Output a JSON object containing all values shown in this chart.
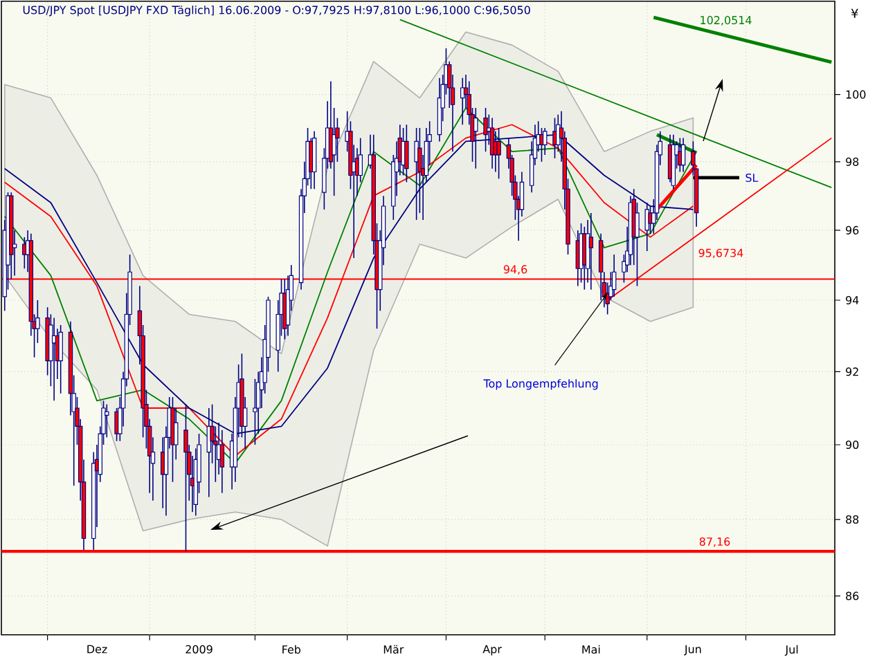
{
  "chart_data": {
    "type": "candlestick",
    "title": "USD/JPY Spot [USDJPY FXD  Täglich] 16.06.2009 - O:97,7925 H:97,8100 L:96,1000 C:96,5050",
    "ylabel": "¥",
    "x": [
      "2008-11-18",
      "2008-11-19",
      "2008-11-20",
      "2008-11-21",
      "2008-11-24",
      "2008-11-25",
      "2008-11-26",
      "2008-11-27",
      "2008-11-28",
      "2008-12-01",
      "2008-12-02",
      "2008-12-03",
      "2008-12-04",
      "2008-12-05",
      "2008-12-08",
      "2008-12-09",
      "2008-12-10",
      "2008-12-11",
      "2008-12-12",
      "2008-12-15",
      "2008-12-16",
      "2008-12-17",
      "2008-12-18",
      "2008-12-19",
      "2008-12-22",
      "2008-12-23",
      "2008-12-24",
      "2008-12-25",
      "2008-12-26",
      "2008-12-29",
      "2008-12-30",
      "2008-12-31",
      "2009-01-01",
      "2009-01-02",
      "2009-01-05",
      "2009-01-06",
      "2009-01-07",
      "2009-01-08",
      "2009-01-09",
      "2009-01-12",
      "2009-01-13",
      "2009-01-14",
      "2009-01-15",
      "2009-01-16",
      "2009-01-19",
      "2009-01-20",
      "2009-01-21",
      "2009-01-22",
      "2009-01-23",
      "2009-01-26",
      "2009-01-27",
      "2009-01-28",
      "2009-01-29",
      "2009-01-30",
      "2009-02-02",
      "2009-02-03",
      "2009-02-04",
      "2009-02-05",
      "2009-02-06",
      "2009-02-09",
      "2009-02-10",
      "2009-02-11",
      "2009-02-12",
      "2009-02-13",
      "2009-02-16",
      "2009-02-17",
      "2009-02-18",
      "2009-02-19",
      "2009-02-20",
      "2009-02-23",
      "2009-02-24",
      "2009-02-25",
      "2009-02-26",
      "2009-02-27",
      "2009-03-02",
      "2009-03-03",
      "2009-03-04",
      "2009-03-05",
      "2009-03-06",
      "2009-03-09",
      "2009-03-10",
      "2009-03-11",
      "2009-03-12",
      "2009-03-13",
      "2009-03-16",
      "2009-03-17",
      "2009-03-18",
      "2009-03-19",
      "2009-03-20",
      "2009-03-23",
      "2009-03-24",
      "2009-03-25",
      "2009-03-26",
      "2009-03-27",
      "2009-03-30",
      "2009-03-31",
      "2009-04-01",
      "2009-04-02",
      "2009-04-03",
      "2009-04-06",
      "2009-04-07",
      "2009-04-08",
      "2009-04-09",
      "2009-04-10",
      "2009-04-13",
      "2009-04-14",
      "2009-04-15",
      "2009-04-16",
      "2009-04-17",
      "2009-04-20",
      "2009-04-21",
      "2009-04-22",
      "2009-04-23",
      "2009-04-24",
      "2009-04-27",
      "2009-04-28",
      "2009-04-29",
      "2009-04-30",
      "2009-05-01",
      "2009-05-04",
      "2009-05-05",
      "2009-05-06",
      "2009-05-07",
      "2009-05-08",
      "2009-05-11",
      "2009-05-12",
      "2009-05-13",
      "2009-05-14",
      "2009-05-15",
      "2009-05-18",
      "2009-05-19",
      "2009-05-20",
      "2009-05-21",
      "2009-05-22",
      "2009-05-25",
      "2009-05-26",
      "2009-05-27",
      "2009-05-28",
      "2009-05-29",
      "2009-06-01",
      "2009-06-02",
      "2009-06-03",
      "2009-06-04",
      "2009-06-05",
      "2009-06-08",
      "2009-06-09",
      "2009-06-10",
      "2009-06-11",
      "2009-06-12",
      "2009-06-15",
      "2009-06-16"
    ],
    "ohlc": [
      [
        94.1,
        96.3,
        93.7,
        96.0
      ],
      [
        95.0,
        97.1,
        94.3,
        97.0
      ],
      [
        97.0,
        97.1,
        94.6,
        95.3
      ],
      [
        95.5,
        96.0,
        94.7,
        95.6
      ],
      [
        95.6,
        95.8,
        94.9,
        95.3
      ],
      [
        95.3,
        96.0,
        94.8,
        95.7
      ],
      [
        95.7,
        95.9,
        93.0,
        93.4
      ],
      [
        93.4,
        93.6,
        92.4,
        93.2
      ],
      [
        93.2,
        94.0,
        92.8,
        93.5
      ],
      [
        93.5,
        93.8,
        91.9,
        92.3
      ],
      [
        92.3,
        93.6,
        91.6,
        93.3
      ],
      [
        92.8,
        93.5,
        91.2,
        93.0
      ],
      [
        93.0,
        93.2,
        91.8,
        92.3
      ],
      [
        92.3,
        93.3,
        91.4,
        93.1
      ],
      [
        93.1,
        93.4,
        90.8,
        91.4
      ],
      [
        90.9,
        91.9,
        88.9,
        91.4
      ],
      [
        91.0,
        91.3,
        90.0,
        90.5
      ],
      [
        90.5,
        90.7,
        88.5,
        89.0
      ],
      [
        89.0,
        89.6,
        87.2,
        87.5
      ],
      [
        87.5,
        89.8,
        87.2,
        89.5
      ],
      [
        89.6,
        90.0,
        87.8,
        89.3
      ],
      [
        89.2,
        90.5,
        89.0,
        90.3
      ],
      [
        90.3,
        91.2,
        90.0,
        91.0
      ],
      [
        90.8,
        91.1,
        90.2,
        90.9
      ],
      [
        90.9,
        91.0,
        90.1,
        90.3
      ],
      [
        90.3,
        91.3,
        90.1,
        91.0
      ],
      [
        91.0,
        92.0,
        90.5,
        91.8
      ],
      [
        91.8,
        94.2,
        91.6,
        93.6
      ],
      [
        93.6,
        95.3,
        93.3,
        94.8
      ],
      [
        93.7,
        94.4,
        92.2,
        93.0
      ],
      [
        93.0,
        93.3,
        90.2,
        91.0
      ],
      [
        91.1,
        91.5,
        89.9,
        90.5
      ],
      [
        90.5,
        90.7,
        88.7,
        89.7
      ],
      [
        89.5,
        90.2,
        88.5,
        89.8
      ],
      [
        89.8,
        90.2,
        88.3,
        89.2
      ],
      [
        89.2,
        90.5,
        88.1,
        90.2
      ],
      [
        90.2,
        91.3,
        89.9,
        91.0
      ],
      [
        91.0,
        91.3,
        89.0,
        90.0
      ],
      [
        90.0,
        91.0,
        89.6,
        90.6
      ],
      [
        90.4,
        91.1,
        87.16,
        89.8
      ],
      [
        89.8,
        90.0,
        88.5,
        89.2
      ],
      [
        89.1,
        89.7,
        88.2,
        88.9
      ],
      [
        88.4,
        89.9,
        88.1,
        89.6
      ],
      [
        89.0,
        90.3,
        88.7,
        90.0
      ],
      [
        89.8,
        91.0,
        88.6,
        90.5
      ],
      [
        90.5,
        91.1,
        89.5,
        90.1
      ],
      [
        90.1,
        90.5,
        89.0,
        90.0
      ],
      [
        89.6,
        90.6,
        89.2,
        90.0
      ],
      [
        90.0,
        90.4,
        88.7,
        89.4
      ],
      [
        89.4,
        90.3,
        88.8,
        90.1
      ],
      [
        89.4,
        91.3,
        89.0,
        91.0
      ],
      [
        91.0,
        92.2,
        90.2,
        91.7
      ],
      [
        91.8,
        92.5,
        90.2,
        90.5
      ],
      [
        90.5,
        91.3,
        89.9,
        91.0
      ],
      [
        90.9,
        91.8,
        90.0,
        91.0
      ],
      [
        91.0,
        92.0,
        90.3,
        91.7
      ],
      [
        91.5,
        92.4,
        91.0,
        92.0
      ],
      [
        91.7,
        93.3,
        91.4,
        92.9
      ],
      [
        92.4,
        94.1,
        92.0,
        94.0
      ],
      [
        92.6,
        94.0,
        92.0,
        93.6
      ],
      [
        93.6,
        94.6,
        93.0,
        94.2
      ],
      [
        94.2,
        94.6,
        92.9,
        93.2
      ],
      [
        93.3,
        94.7,
        93.0,
        94.3
      ],
      [
        94.0,
        95.0,
        93.7,
        94.7
      ],
      [
        94.5,
        97.2,
        94.3,
        97.0
      ],
      [
        97.0,
        98.0,
        96.5,
        97.5
      ],
      [
        97.5,
        99.0,
        97.3,
        98.6
      ],
      [
        98.6,
        98.7,
        97.2,
        97.7
      ],
      [
        97.7,
        98.9,
        97.2,
        98.7
      ],
      [
        97.1,
        98.4,
        96.6,
        98.1
      ],
      [
        98.1,
        99.8,
        97.8,
        99.0
      ],
      [
        99.0,
        100.4,
        97.8,
        98.0
      ],
      [
        98.2,
        99.6,
        97.0,
        98.8
      ],
      [
        99.0,
        99.3,
        98.0,
        98.7
      ],
      [
        98.6,
        99.5,
        98.3,
        98.9
      ],
      [
        98.9,
        99.2,
        97.2,
        97.6
      ],
      [
        97.7,
        98.5,
        95.2,
        98.0
      ],
      [
        98.1,
        98.4,
        97.0,
        97.6
      ],
      [
        97.6,
        98.7,
        97.4,
        98.2
      ],
      [
        97.9,
        98.8,
        97.8,
        98.2
      ],
      [
        98.2,
        98.8,
        95.3,
        95.7
      ],
      [
        95.7,
        96.2,
        93.2,
        94.3
      ],
      [
        94.3,
        96.0,
        93.7,
        95.7
      ],
      [
        95.5,
        97.0,
        95.0,
        96.7
      ],
      [
        96.7,
        98.2,
        96.3,
        98.0
      ],
      [
        97.7,
        98.6,
        97.0,
        98.1
      ],
      [
        98.7,
        99.1,
        97.6,
        98.0
      ],
      [
        97.9,
        99.0,
        97.6,
        98.6
      ],
      [
        98.6,
        99.1,
        97.4,
        97.8
      ],
      [
        98.0,
        99.0,
        96.3,
        98.6
      ],
      [
        98.4,
        99.0,
        96.5,
        97.7
      ],
      [
        97.8,
        98.2,
        96.3,
        97.6
      ],
      [
        97.6,
        99.0,
        97.4,
        98.6
      ],
      [
        98.6,
        99.2,
        97.9,
        98.8
      ],
      [
        98.8,
        100.5,
        98.6,
        99.9
      ],
      [
        99.6,
        100.6,
        99.2,
        100.3
      ],
      [
        100.3,
        101.4,
        100.0,
        100.9
      ],
      [
        100.9,
        101.0,
        99.6,
        100.2
      ],
      [
        100.2,
        100.6,
        98.3,
        99.7
      ],
      [
        99.9,
        100.5,
        99.1,
        100.2
      ],
      [
        100.2,
        100.6,
        99.6,
        100.0
      ],
      [
        100.0,
        100.4,
        99.1,
        99.4
      ],
      [
        99.4,
        99.6,
        98.0,
        98.6
      ],
      [
        98.9,
        99.6,
        97.8,
        99.3
      ],
      [
        99.3,
        99.6,
        98.3,
        98.8
      ],
      [
        98.9,
        99.4,
        98.5,
        99.0
      ],
      [
        99.0,
        99.3,
        97.8,
        98.2
      ],
      [
        98.6,
        98.9,
        97.7,
        98.2
      ],
      [
        98.6,
        99.0,
        97.5,
        98.2
      ],
      [
        98.5,
        98.7,
        97.8,
        98.1
      ],
      [
        98.1,
        98.2,
        97.0,
        97.4
      ],
      [
        97.4,
        97.6,
        96.3,
        96.9
      ],
      [
        96.9,
        97.0,
        95.7,
        96.6
      ],
      [
        96.6,
        97.7,
        96.4,
        97.4
      ],
      [
        97.3,
        98.6,
        97.1,
        98.2
      ],
      [
        98.1,
        99.1,
        97.9,
        98.7
      ],
      [
        98.5,
        99.2,
        98.3,
        98.8
      ],
      [
        98.8,
        99.0,
        98.0,
        98.5
      ],
      [
        98.5,
        99.0,
        98.2,
        98.9
      ],
      [
        98.9,
        99.3,
        98.1,
        98.5
      ],
      [
        98.5,
        99.4,
        98.3,
        99.1
      ],
      [
        99.0,
        99.5,
        98.0,
        98.7
      ],
      [
        98.7,
        98.9,
        96.6,
        97.2
      ],
      [
        97.2,
        97.5,
        95.3,
        95.6
      ],
      [
        95.7,
        96.0,
        94.4,
        94.9
      ],
      [
        94.9,
        96.2,
        94.5,
        95.9
      ],
      [
        95.9,
        96.1,
        94.3,
        95.0
      ],
      [
        94.9,
        96.3,
        94.5,
        95.9
      ],
      [
        95.8,
        96.5,
        94.3,
        95.5
      ],
      [
        95.7,
        95.9,
        94.0,
        94.8
      ],
      [
        94.5,
        94.8,
        93.8,
        94.1
      ],
      [
        94.2,
        94.5,
        93.6,
        93.9
      ],
      [
        94.1,
        94.8,
        94.0,
        94.4
      ],
      [
        94.3,
        95.3,
        94.1,
        94.8
      ],
      [
        94.8,
        95.3,
        94.5,
        95.1
      ],
      [
        95.0,
        96.1,
        94.8,
        95.4
      ],
      [
        95.3,
        97.0,
        95.0,
        96.8
      ],
      [
        96.9,
        97.2,
        95.0,
        95.8
      ],
      [
        95.8,
        96.8,
        94.4,
        96.5
      ],
      [
        96.0,
        96.8,
        95.4,
        96.6
      ],
      [
        96.5,
        96.7,
        95.9,
        96.2
      ],
      [
        96.2,
        96.9,
        95.9,
        96.5
      ],
      [
        96.5,
        98.5,
        96.3,
        98.3
      ],
      [
        98.2,
        98.9,
        97.9,
        98.6
      ],
      [
        98.5,
        98.8,
        97.4,
        97.5
      ],
      [
        97.3,
        98.8,
        97.2,
        98.5
      ],
      [
        98.2,
        98.6,
        97.8,
        98.5
      ],
      [
        98.3,
        98.7,
        97.7,
        97.9
      ],
      [
        97.9,
        98.7,
        97.7,
        98.5
      ],
      [
        98.3,
        98.6,
        97.6,
        97.9
      ],
      [
        97.7925,
        97.81,
        96.1,
        96.505
      ]
    ],
    "series": [
      {
        "type": "line",
        "color": "#008000",
        "x": [
          "2008-11-18",
          "2008-12-02",
          "2008-12-16",
          "2008-12-30",
          "2009-01-13",
          "2009-01-27",
          "2009-02-10",
          "2009-02-24",
          "2009-03-10",
          "2009-03-24",
          "2009-04-07",
          "2009-04-21",
          "2009-05-05",
          "2009-05-19",
          "2009-06-02",
          "2009-06-16"
        ],
        "values": [
          96.4,
          94.7,
          91.2,
          91.5,
          90.7,
          89.5,
          91.2,
          94.8,
          98.3,
          97.3,
          99.6,
          98.3,
          98.4,
          95.5,
          95.9,
          98.3
        ]
      },
      {
        "type": "line",
        "color": "#ff0000",
        "x": [
          "2008-11-18",
          "2008-12-02",
          "2008-12-16",
          "2008-12-30",
          "2009-01-13",
          "2009-01-27",
          "2009-02-10",
          "2009-02-24",
          "2009-03-10",
          "2009-03-24",
          "2009-04-07",
          "2009-04-21",
          "2009-05-05",
          "2009-05-19",
          "2009-06-02",
          "2009-06-15"
        ],
        "values": [
          97.4,
          96.4,
          94.4,
          91.0,
          91.0,
          89.7,
          90.7,
          93.5,
          97.0,
          97.7,
          98.7,
          99.1,
          98.4,
          96.8,
          95.8,
          96.7
        ],
        "lower": [
          94.7,
          92.9,
          91.5,
          87.7,
          88.0,
          88.2,
          88.0,
          87.3,
          92.6,
          95.6,
          95.2,
          96.1,
          96.9,
          94.1,
          93.4,
          93.8
        ],
        "upper": [
          100.3,
          99.9,
          97.6,
          94.7,
          93.6,
          93.4,
          92.5,
          97.8,
          101.0,
          99.9,
          101.9,
          101.5,
          100.7,
          98.3,
          98.9,
          99.3
        ]
      },
      {
        "type": "line",
        "color": "#000080",
        "x": [
          "2008-11-18",
          "2008-12-02",
          "2008-12-16",
          "2008-12-30",
          "2009-01-13",
          "2009-01-27",
          "2009-02-10",
          "2009-02-24",
          "2009-03-10",
          "2009-03-24",
          "2009-04-07",
          "2009-04-21",
          "2009-05-05",
          "2009-05-19",
          "2009-06-02",
          "2009-06-15"
        ],
        "values": [
          97.8,
          96.8,
          94.5,
          92.2,
          91.0,
          90.3,
          90.5,
          92.1,
          95.2,
          97.2,
          98.6,
          98.7,
          98.8,
          97.6,
          96.7,
          96.6
        ]
      },
      {
        "type": "line",
        "color": "#008000",
        "x": [
          "2009-03-18",
          "2009-07-27"
        ],
        "values": [
          102.28,
          97.24
        ]
      },
      {
        "type": "line",
        "color": "#008000",
        "x": [
          "2009-06-03",
          "2009-07-27"
        ],
        "values": [
          102.35,
          100.98
        ]
      },
      {
        "type": "line",
        "color": "#008000",
        "x": [
          "2009-06-04",
          "2009-06-16"
        ],
        "values": [
          98.8,
          98.26
        ]
      },
      {
        "type": "line",
        "color": "#ff0000",
        "x": [
          "2009-06-04",
          "2009-06-16"
        ],
        "values": [
          96.6,
          97.9
        ]
      },
      {
        "type": "line",
        "color": "#ff0000",
        "x": [
          "2009-05-20",
          "2009-07-27"
        ],
        "values": [
          94.0,
          98.7
        ]
      },
      {
        "type": "line",
        "color": "#000000",
        "x": [
          "2009-06-15",
          "2009-06-29"
        ],
        "values": [
          97.53,
          97.53
        ]
      }
    ],
    "ref_lines": [
      {
        "axis": "y",
        "value": 94.6,
        "label": "94,6",
        "color": "#ff0000"
      },
      {
        "axis": "y",
        "value": 87.16,
        "label": "87,16",
        "color": "#ff0000"
      }
    ],
    "annotations": [
      {
        "text": "Top Longempfehlung",
        "x": "2009-05-20",
        "y": 94.2
      },
      {
        "text": "102,0514",
        "x": "2009-06-16",
        "y": 102.0514
      },
      {
        "text": "95,6734",
        "x": "2009-06-16",
        "y": 95.6734
      },
      {
        "text": "SL",
        "x": "2009-06-29",
        "y": 97.53
      }
    ],
    "xlim": [
      "2008-11-17",
      "2009-07-28"
    ],
    "xticks": [
      {
        "value": "2008-12-01",
        "label": null
      },
      {
        "value": "2008-12-16",
        "label": "Dez"
      },
      {
        "value": "2009-01-01",
        "label": null
      },
      {
        "value": "2009-01-16",
        "label": "2009"
      },
      {
        "value": "2009-02-02",
        "label": null
      },
      {
        "value": "2009-02-13",
        "label": "Feb"
      },
      {
        "value": "2009-03-02",
        "label": null
      },
      {
        "value": "2009-03-16",
        "label": "Mär"
      },
      {
        "value": "2009-04-01",
        "label": null
      },
      {
        "value": "2009-04-15",
        "label": "Apr"
      },
      {
        "value": "2009-05-01",
        "label": null
      },
      {
        "value": "2009-05-15",
        "label": "Mai"
      },
      {
        "value": "2009-06-01",
        "label": null
      },
      {
        "value": "2009-06-15",
        "label": "Jun"
      },
      {
        "value": "2009-07-01",
        "label": null
      },
      {
        "value": "2009-07-15",
        "label": "Jul"
      }
    ],
    "ylim": [
      85,
      102.85
    ],
    "yticks": [
      86,
      88,
      90,
      92,
      94,
      96,
      98,
      100
    ],
    "log": "y",
    "grid": true
  }
}
